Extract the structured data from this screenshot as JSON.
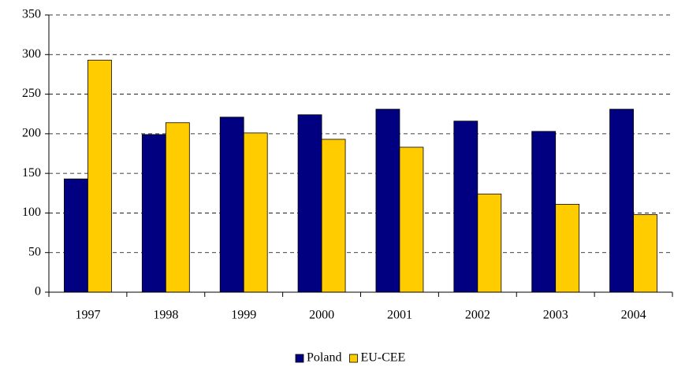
{
  "chart_data": {
    "type": "bar",
    "categories": [
      "1997",
      "1998",
      "1999",
      "2000",
      "2001",
      "2002",
      "2003",
      "2004"
    ],
    "series": [
      {
        "name": "Poland",
        "color": "#000080",
        "values": [
          143,
          199,
          221,
          224,
          231,
          216,
          203,
          231
        ]
      },
      {
        "name": "EU-CEE",
        "color": "#ffcc00",
        "values": [
          293,
          214,
          201,
          193,
          183,
          124,
          111,
          98
        ]
      }
    ],
    "ylim": [
      0,
      350
    ],
    "yticks": [
      0,
      50,
      100,
      150,
      200,
      250,
      300,
      350
    ],
    "grid": true,
    "legend": "bottom"
  }
}
